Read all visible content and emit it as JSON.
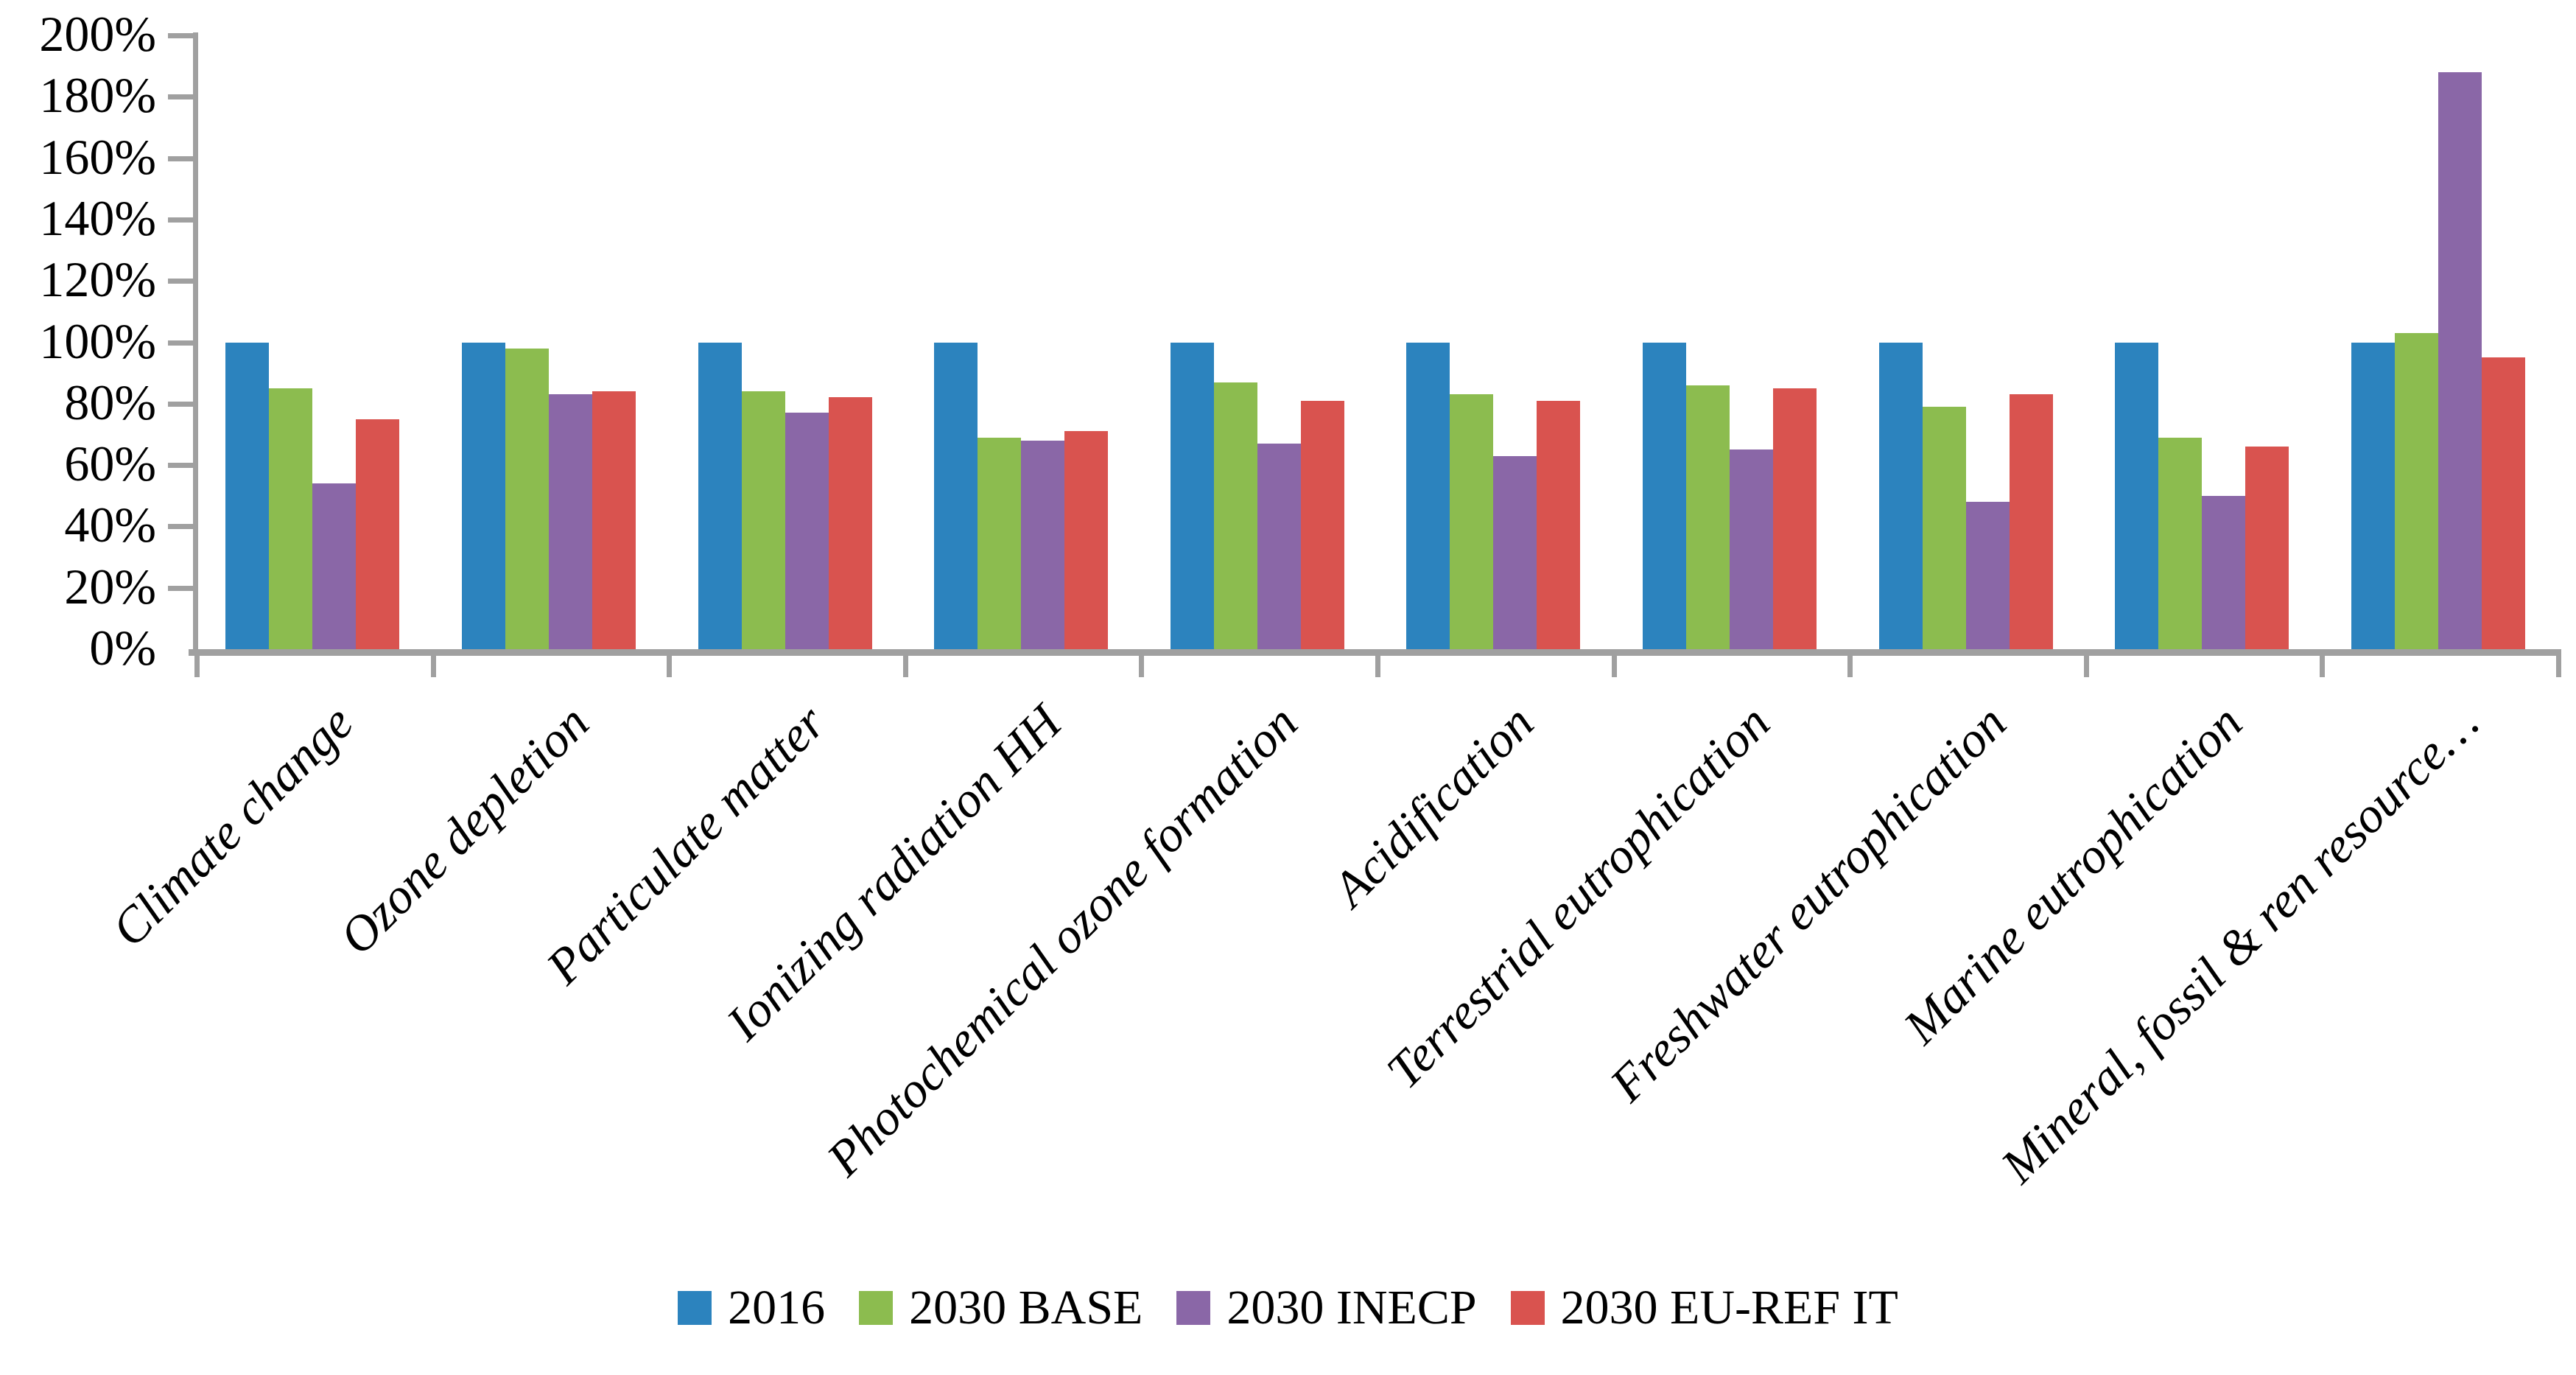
{
  "chart_data": {
    "type": "bar",
    "title": "",
    "xlabel": "",
    "ylabel": "",
    "categories": [
      "Climate change",
      "Ozone depletion",
      "Particulate matter",
      "Ionizing radiation HH",
      "Photochemical ozone formation",
      "Acidification",
      "Terrestrial eutrophication",
      "Freshwater eutrophication",
      "Marine eutrophication",
      "Mineral, fossil & ren resource…"
    ],
    "series": [
      {
        "name": "2016",
        "color": "#2c83be",
        "values": [
          100,
          100,
          100,
          100,
          100,
          100,
          100,
          100,
          100,
          100
        ]
      },
      {
        "name": "2030 BASE",
        "color": "#8cbc4f",
        "values": [
          85,
          98,
          84,
          69,
          87,
          83,
          86,
          79,
          69,
          103
        ]
      },
      {
        "name": "2030 INECP",
        "color": "#8a67a7",
        "values": [
          54,
          83,
          77,
          68,
          67,
          63,
          65,
          48,
          50,
          188
        ]
      },
      {
        "name": "2030 EU-REF IT",
        "color": "#d9534f",
        "values": [
          75,
          84,
          82,
          71,
          81,
          81,
          85,
          83,
          66,
          95
        ]
      }
    ],
    "ylim": [
      0,
      200
    ],
    "ytick_step": 20,
    "ytick_labels": [
      "0%",
      "20%",
      "40%",
      "60%",
      "80%",
      "100%",
      "120%",
      "140%",
      "160%",
      "180%",
      "200%"
    ],
    "grid": "off",
    "legend_position": "bottom",
    "axis_color": "#a0a0a0"
  }
}
